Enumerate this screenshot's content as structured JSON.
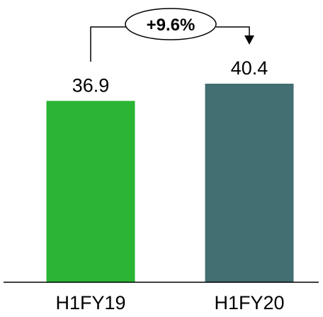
{
  "chart_data": {
    "type": "bar",
    "categories": [
      "H1FY19",
      "H1FY20"
    ],
    "values": [
      36.9,
      40.4
    ],
    "value_labels": [
      "36.9",
      "40.4"
    ],
    "colors": [
      "#2bb534",
      "#436e72"
    ],
    "ylim": [
      0,
      40.4
    ],
    "grid": false,
    "legend": "none",
    "annotation": {
      "text": "+9.6%",
      "from": "H1FY19",
      "to": "H1FY20"
    }
  }
}
